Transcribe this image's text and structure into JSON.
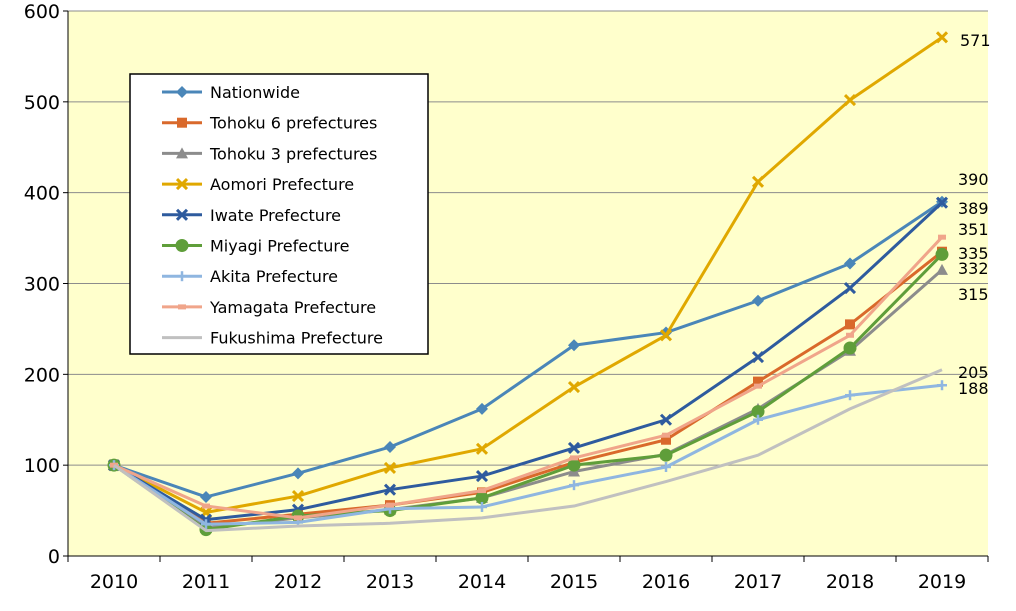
{
  "chart_data": {
    "type": "line",
    "title": "",
    "xlabel": "",
    "ylabel": "",
    "ylim": [
      0,
      600
    ],
    "yticks": [
      0,
      100,
      200,
      300,
      400,
      500,
      600
    ],
    "grid": "horizontal",
    "legend_placement": "top-left",
    "background": "#ffffcc",
    "categories": [
      "2010",
      "2011",
      "2012",
      "2013",
      "2014",
      "2015",
      "2016",
      "2017",
      "2018",
      "2019"
    ],
    "series": [
      {
        "name": "Nationwide",
        "color": "#4a86b8",
        "marker": "diamond",
        "values": [
          100,
          65,
          91,
          120,
          162,
          232,
          246,
          281,
          322,
          390
        ]
      },
      {
        "name": "Tohoku 6 prefectures",
        "color": "#d9692b",
        "marker": "square",
        "values": [
          100,
          36,
          46,
          56,
          70,
          103,
          128,
          192,
          255,
          335
        ]
      },
      {
        "name": "Tohoku 3 prefectures",
        "color": "#8c8c8c",
        "marker": "triangle",
        "values": [
          100,
          31,
          42,
          51,
          64,
          93,
          112,
          162,
          226,
          315
        ]
      },
      {
        "name": "Aomori Prefecture",
        "color": "#e0a800",
        "marker": "x",
        "values": [
          100,
          48,
          66,
          97,
          118,
          186,
          243,
          412,
          502,
          571
        ]
      },
      {
        "name": "Iwate Prefecture",
        "color": "#2e5b9e",
        "marker": "x",
        "values": [
          100,
          40,
          51,
          73,
          88,
          119,
          150,
          219,
          295,
          389
        ]
      },
      {
        "name": "Miyagi Prefecture",
        "color": "#5f9e3a",
        "marker": "circle",
        "values": [
          100,
          29,
          44,
          50,
          64,
          100,
          111,
          159,
          229,
          332
        ]
      },
      {
        "name": "Akita Prefecture",
        "color": "#8fb6e0",
        "marker": "plus",
        "values": [
          100,
          35,
          37,
          52,
          54,
          78,
          98,
          150,
          177,
          188
        ]
      },
      {
        "name": "Yamagata Prefecture",
        "color": "#f0a58a",
        "marker": "dash",
        "values": [
          100,
          55,
          42,
          56,
          72,
          108,
          133,
          187,
          243,
          351
        ]
      },
      {
        "name": "Fukushima Prefecture",
        "color": "#c0c0c0",
        "marker": "none",
        "values": [
          100,
          28,
          33,
          36,
          42,
          55,
          82,
          111,
          162,
          205
        ]
      }
    ],
    "end_labels": [
      "571",
      "390",
      "389",
      "351",
      "335",
      "332",
      "315",
      "205",
      "188"
    ]
  }
}
